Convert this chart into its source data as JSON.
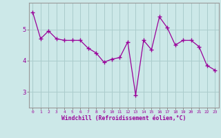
{
  "x": [
    0,
    1,
    2,
    3,
    4,
    5,
    6,
    7,
    8,
    9,
    10,
    11,
    12,
    13,
    14,
    15,
    16,
    17,
    18,
    19,
    20,
    21,
    22,
    23
  ],
  "y": [
    5.55,
    4.7,
    4.95,
    4.7,
    4.65,
    4.65,
    4.65,
    4.4,
    4.25,
    3.95,
    4.05,
    4.1,
    4.6,
    2.9,
    4.65,
    4.35,
    5.4,
    5.05,
    4.5,
    4.65,
    4.65,
    4.45,
    3.85,
    3.7
  ],
  "line_color": "#990099",
  "marker": "+",
  "bg_color": "#cce8e8",
  "grid_color": "#aacccc",
  "xlabel": "Windchill (Refroidissement éolien,°C)",
  "xlabel_color": "#990099",
  "tick_color": "#990099",
  "xlim": [
    -0.5,
    23.5
  ],
  "ylim": [
    2.5,
    5.85
  ],
  "yticks": [
    3,
    4,
    5
  ],
  "xticks": [
    0,
    1,
    2,
    3,
    4,
    5,
    6,
    7,
    8,
    9,
    10,
    11,
    12,
    13,
    14,
    15,
    16,
    17,
    18,
    19,
    20,
    21,
    22,
    23
  ]
}
